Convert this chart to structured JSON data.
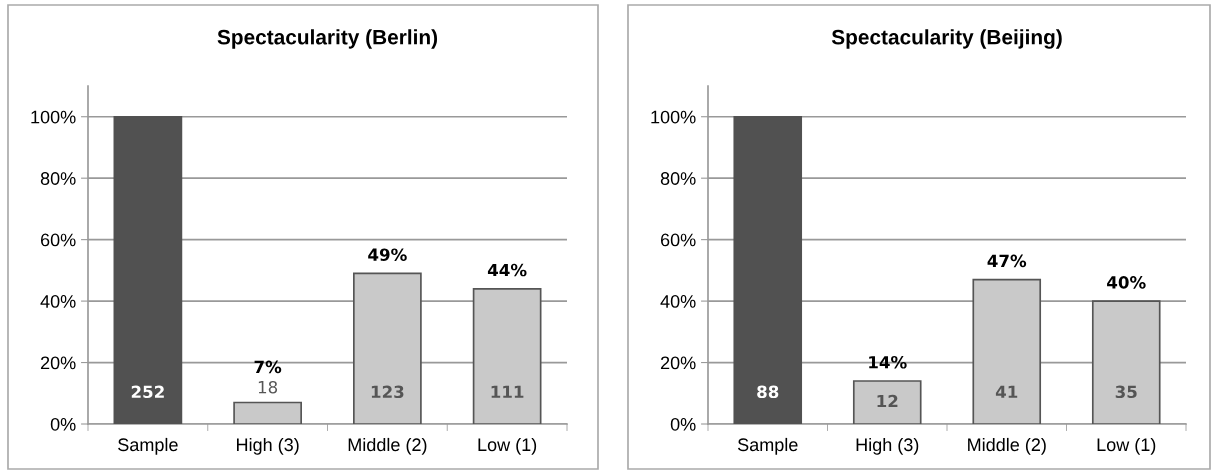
{
  "chart_data": [
    {
      "type": "bar",
      "title": "Spectacularity (Berlin)",
      "categories": [
        "Sample",
        "High (3)",
        "Middle (2)",
        "Low (1)"
      ],
      "values": [
        100,
        7,
        49,
        44
      ],
      "colors": [
        "#515151",
        "#c9c9c9",
        "#c9c9c9",
        "#c9c9c9"
      ],
      "value_labels": [
        null,
        "7%",
        "49%",
        "44%"
      ],
      "ylim": [
        0,
        110
      ],
      "yticks": [
        {
          "value": 0,
          "label": "0%"
        },
        {
          "value": 20,
          "label": "20%"
        },
        {
          "value": 40,
          "label": "40%"
        },
        {
          "value": 60,
          "label": "60%"
        },
        {
          "value": 80,
          "label": "80%"
        },
        {
          "value": 100,
          "label": "100%"
        }
      ],
      "grid": "y",
      "annotations": [
        "252",
        "18",
        "123",
        "111"
      ]
    },
    {
      "type": "bar",
      "title": "Spectacularity (Beijing)",
      "categories": [
        "Sample",
        "High (3)",
        "Middle (2)",
        "Low (1)"
      ],
      "values": [
        100,
        14,
        47,
        40
      ],
      "colors": [
        "#515151",
        "#c9c9c9",
        "#c9c9c9",
        "#c9c9c9"
      ],
      "value_labels": [
        null,
        "14%",
        "47%",
        "40%"
      ],
      "ylim": [
        0,
        110
      ],
      "yticks": [
        {
          "value": 0,
          "label": "0%"
        },
        {
          "value": 20,
          "label": "20%"
        },
        {
          "value": 40,
          "label": "40%"
        },
        {
          "value": 60,
          "label": "60%"
        },
        {
          "value": 80,
          "label": "80%"
        },
        {
          "value": 100,
          "label": "100%"
        }
      ],
      "grid": "y",
      "annotations": [
        "88",
        "12",
        "41",
        "35"
      ]
    }
  ]
}
